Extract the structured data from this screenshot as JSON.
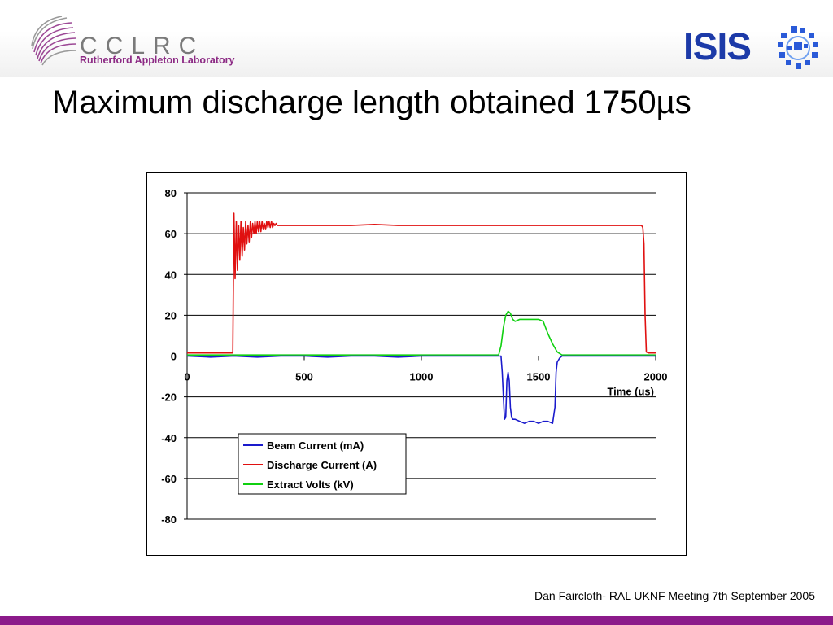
{
  "header": {
    "org_name": "CCLRC",
    "org_subtitle": "Rutherford Appleton Laboratory",
    "facility_name": "ISIS"
  },
  "slide": {
    "title": "Maximum discharge length obtained 1750µs"
  },
  "footer": {
    "text": "Dan Faircloth- RAL UKNF Meeting 7th September 2005"
  },
  "colors": {
    "beam": "#1a1acc",
    "discharge": "#e01010",
    "extract": "#10d010",
    "footer_bar": "#8c1a8a",
    "cclrc_purple": "#8c2a84",
    "isis_blue": "#1c3aa8"
  },
  "chart_data": {
    "type": "line",
    "title": "",
    "xlabel": "Time (us)",
    "ylabel": "",
    "xlim": [
      0,
      2000
    ],
    "ylim": [
      -80,
      80
    ],
    "xticks": [
      0,
      500,
      1000,
      1500,
      2000
    ],
    "yticks": [
      80,
      60,
      40,
      20,
      0,
      -20,
      -40,
      -60,
      -80
    ],
    "grid": "horizontal",
    "legend_position": "lower-left",
    "series": [
      {
        "name": "Beam Current (mA)",
        "color": "#1a1acc",
        "x": [
          0,
          100,
          200,
          300,
          400,
          500,
          600,
          700,
          800,
          900,
          1000,
          1100,
          1200,
          1300,
          1340,
          1345,
          1350,
          1355,
          1360,
          1365,
          1370,
          1375,
          1380,
          1385,
          1390,
          1400,
          1420,
          1440,
          1460,
          1480,
          1500,
          1520,
          1540,
          1560,
          1570,
          1575,
          1580,
          1590,
          1600,
          1700,
          1800,
          1900,
          2000
        ],
        "y": [
          0,
          -0.5,
          0,
          -0.5,
          0,
          0,
          -0.5,
          0,
          0,
          -0.5,
          0,
          0,
          0,
          0,
          0,
          -8,
          -20,
          -31,
          -30,
          -12,
          -8,
          -12,
          -25,
          -30,
          -31,
          -31,
          -32,
          -33,
          -32,
          -32,
          -33,
          -32,
          -32,
          -33,
          -25,
          -8,
          -3,
          -1,
          0,
          0,
          0,
          0,
          0
        ]
      },
      {
        "name": "Discharge Current (A)",
        "color": "#e01010",
        "x": [
          0,
          100,
          195,
          200,
          205,
          210,
          215,
          220,
          225,
          230,
          235,
          240,
          245,
          250,
          255,
          260,
          265,
          270,
          275,
          280,
          285,
          290,
          295,
          300,
          305,
          310,
          315,
          320,
          325,
          330,
          335,
          340,
          345,
          350,
          355,
          360,
          365,
          370,
          375,
          380,
          385,
          390,
          400,
          450,
          500,
          600,
          700,
          800,
          900,
          1000,
          1100,
          1200,
          1300,
          1400,
          1500,
          1600,
          1700,
          1800,
          1900,
          1940,
          1945,
          1950,
          1955,
          1960,
          1970,
          1980,
          2000
        ],
        "y": [
          1.5,
          1.5,
          1.5,
          70,
          38,
          66,
          42,
          64,
          47,
          66,
          49,
          63,
          52,
          66,
          55,
          64,
          56,
          66,
          58,
          65,
          60,
          66,
          60,
          66,
          61,
          66,
          61,
          66,
          62,
          65,
          62,
          66,
          63,
          66,
          63,
          66,
          63,
          65,
          64,
          65,
          64,
          64,
          64,
          64,
          64,
          64,
          64,
          64.5,
          64,
          64,
          64,
          64,
          64,
          64,
          64,
          64,
          64,
          64,
          64,
          64,
          63,
          55,
          20,
          2,
          1.5,
          1.5,
          1.5
        ]
      },
      {
        "name": "Extract Volts (kV)",
        "color": "#10d010",
        "x": [
          0,
          200,
          400,
          600,
          800,
          1000,
          1200,
          1330,
          1340,
          1350,
          1360,
          1370,
          1380,
          1390,
          1400,
          1420,
          1440,
          1460,
          1480,
          1500,
          1520,
          1530,
          1540,
          1560,
          1580,
          1600,
          1700,
          1800,
          1900,
          2000
        ],
        "y": [
          0.5,
          0.5,
          0.5,
          0.5,
          0.5,
          0.5,
          0.5,
          0.5,
          5,
          14,
          20,
          22,
          21,
          18,
          17,
          18,
          18,
          18,
          18,
          18,
          17,
          14,
          11,
          6,
          2,
          0.5,
          0.5,
          0.5,
          0.5,
          0.5
        ]
      }
    ]
  }
}
